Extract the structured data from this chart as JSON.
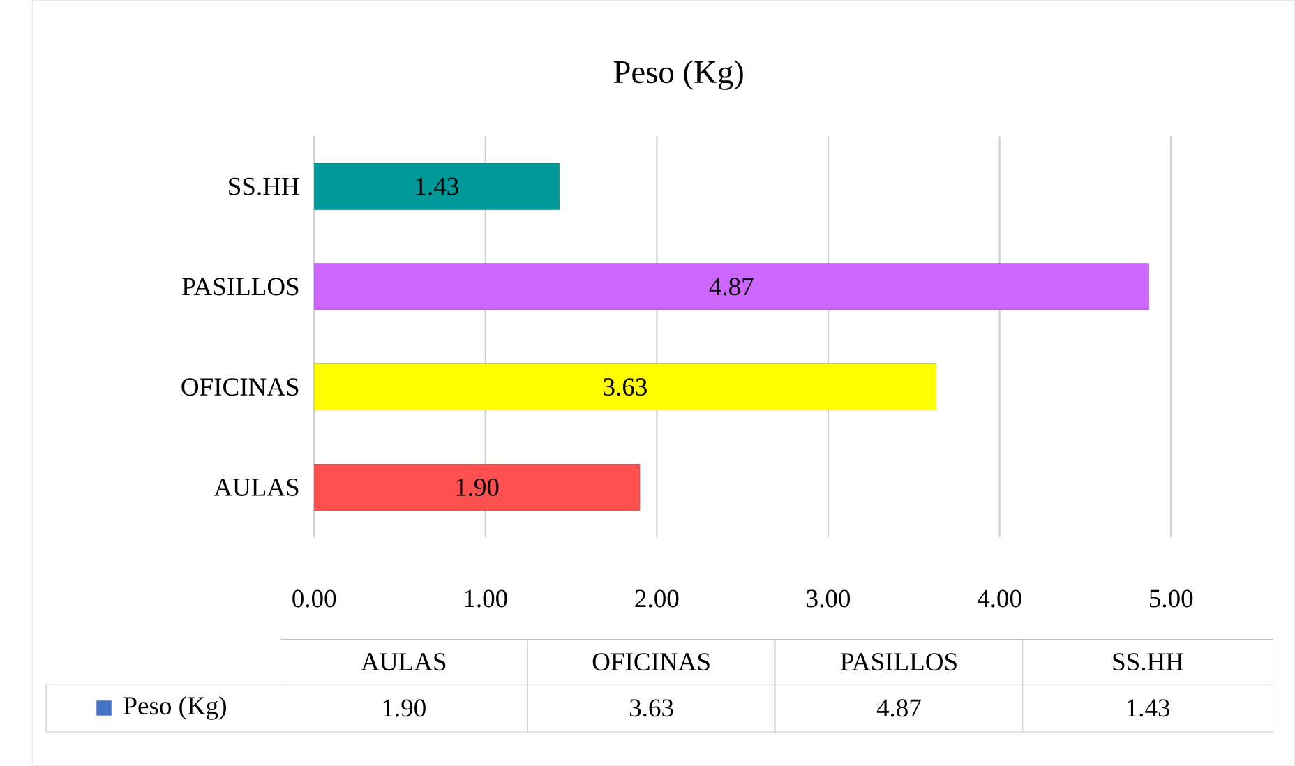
{
  "chart_data": {
    "type": "bar",
    "orientation": "horizontal",
    "title": "Peso (Kg)",
    "categories": [
      "SS.HH",
      "PASILLOS",
      "OFICINAS",
      "AULAS"
    ],
    "series": [
      {
        "name": "Peso (Kg)",
        "color": "#4472c4",
        "colors": [
          "#009999",
          "#cc66ff",
          "#ffff00",
          "#ff5050"
        ],
        "values": [
          1.43,
          4.87,
          3.63,
          1.9
        ],
        "value_labels": [
          "1.43",
          "4.87",
          "3.63",
          "1.90"
        ]
      }
    ],
    "xlim": [
      0,
      5
    ],
    "xticks": [
      {
        "value": 0,
        "label": "0.00"
      },
      {
        "value": 1,
        "label": "1.00"
      },
      {
        "value": 2,
        "label": "2.00"
      },
      {
        "value": 3,
        "label": "3.00"
      },
      {
        "value": 4,
        "label": "4.00"
      },
      {
        "value": 5,
        "label": "5.00"
      }
    ],
    "grid": "x",
    "legend": "bottom"
  }
}
